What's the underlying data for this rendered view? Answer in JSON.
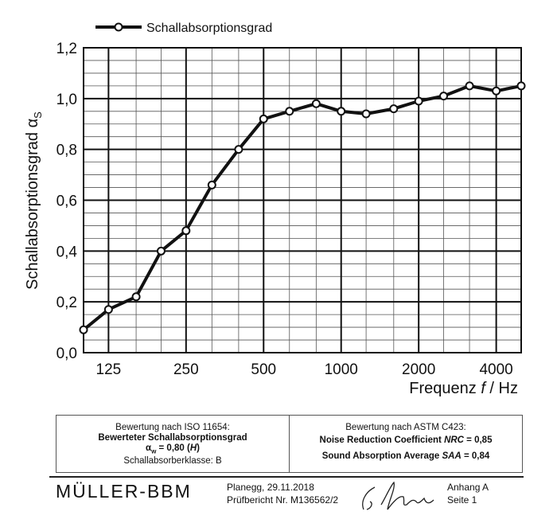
{
  "chart_data": {
    "type": "line",
    "legend": "Schallabsorptionsgrad",
    "legend_position": "top-left",
    "ylabel_main": "Schallabsorptionsgrad α",
    "ylabel_sub": "S",
    "xlabel_main": "Frequenz ",
    "xlabel_var": "f",
    "xlabel_unit": " / Hz",
    "x_scale": "log",
    "xlim": [
      100,
      5000
    ],
    "ylim": [
      0,
      1.2
    ],
    "grid": true,
    "x_tick_values": [
      125,
      250,
      500,
      1000,
      2000,
      4000
    ],
    "x_tick_labels": [
      "125",
      "250",
      "500",
      "1000",
      "2000",
      "4000"
    ],
    "y_tick_values": [
      0,
      0.2,
      0.4,
      0.6,
      0.8,
      1.0,
      1.2
    ],
    "y_tick_labels": [
      "0,0",
      "0,2",
      "0,4",
      "0,6",
      "0,8",
      "1,0",
      "1,2"
    ],
    "x": [
      100,
      125,
      160,
      200,
      250,
      315,
      400,
      500,
      630,
      800,
      1000,
      1250,
      1600,
      2000,
      2500,
      3150,
      4000,
      5000
    ],
    "values": [
      0.09,
      0.17,
      0.22,
      0.4,
      0.48,
      0.66,
      0.8,
      0.92,
      0.95,
      0.98,
      0.95,
      0.94,
      0.96,
      0.99,
      1.01,
      1.05,
      1.03,
      1.05
    ]
  },
  "iso": {
    "heading": "Bewertung nach ISO 11654:",
    "title": "Bewerteter Schallabsorptionsgrad",
    "value_prefix": "α",
    "value_sub": "w",
    "value_mid": " = 0,80 (",
    "value_h": "H",
    "value_end": ")",
    "klasse": "Schallabsorberklasse: B"
  },
  "astm": {
    "heading": "Bewertung nach ASTM C423:",
    "nrc_label": "Noise Reduction Coefficient ",
    "nrc_abbr": "NRC",
    "nrc_value": " = 0,85",
    "saa_label": "Sound Absorption Average ",
    "saa_abbr": "SAA",
    "saa_value": " = 0,84"
  },
  "footer": {
    "logo": "MÜLLER-BBM",
    "place_date": "Planegg, 29.11.2018",
    "report": "Prüfbericht Nr. M136562/2",
    "annex": "Anhang A",
    "page": "Seite 1"
  }
}
